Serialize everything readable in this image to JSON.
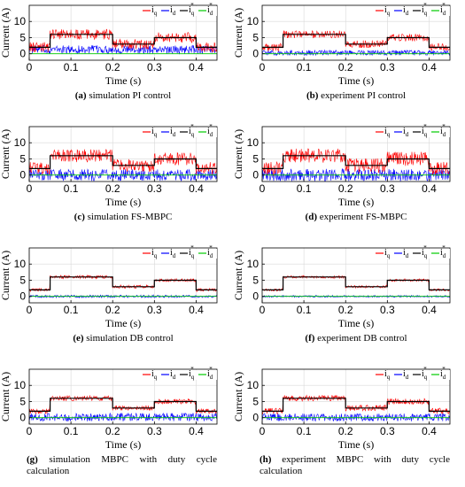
{
  "colors": {
    "iq": "#ff0000",
    "id": "#0000ff",
    "iq_ref": "#000000",
    "id_ref": "#00cc00"
  },
  "legend": [
    {
      "main": "i",
      "sub": "q",
      "sup": ""
    },
    {
      "main": "i",
      "sub": "d",
      "sup": ""
    },
    {
      "main": "i",
      "sub": "q",
      "sup": "*"
    },
    {
      "main": "i",
      "sub": "d",
      "sup": "*"
    }
  ],
  "chart_data": [
    {
      "type": "line",
      "letter": "(a)",
      "caption": "simulation PI control",
      "xlabel": "Time (s)",
      "ylabel": "Current (A)",
      "xlim": [
        0,
        0.45
      ],
      "ylim": [
        -2,
        15
      ],
      "xticks": [
        "0",
        "0.1",
        "0.2",
        "0.3",
        "0.4"
      ],
      "yticks": [
        "0",
        "5",
        "10"
      ],
      "series": [
        {
          "name": "iq*",
          "steps": [
            [
              0,
              2
            ],
            [
              0.05,
              6
            ],
            [
              0.2,
              3
            ],
            [
              0.3,
              5
            ],
            [
              0.4,
              2
            ]
          ]
        },
        {
          "name": "iq",
          "mean": "iq*",
          "noise": 1.6
        },
        {
          "name": "id*",
          "constant": 0
        },
        {
          "name": "id",
          "base": 1.3,
          "noise": 1.3
        }
      ]
    },
    {
      "type": "line",
      "letter": "(b)",
      "caption": "experiment PI control",
      "xlabel": "Time (s)",
      "ylabel": "Current (A)",
      "xlim": [
        0,
        0.45
      ],
      "ylim": [
        -2,
        15
      ],
      "xticks": [
        "0",
        "0.1",
        "0.2",
        "0.3",
        "0.4"
      ],
      "yticks": [
        "0",
        "5",
        "10"
      ],
      "series": [
        {
          "name": "iq*",
          "steps": [
            [
              0,
              2
            ],
            [
              0.05,
              6
            ],
            [
              0.2,
              3
            ],
            [
              0.3,
              5
            ],
            [
              0.4,
              2
            ]
          ]
        },
        {
          "name": "iq",
          "mean": "iq*",
          "noise": 1.2
        },
        {
          "name": "id*",
          "constant": 0
        },
        {
          "name": "id",
          "base": 0.3,
          "noise": 0.8
        }
      ]
    },
    {
      "type": "line",
      "letter": "(c)",
      "caption": "simulation FS-MBPC",
      "xlabel": "Time (s)",
      "ylabel": "Current (A)",
      "xlim": [
        0,
        0.45
      ],
      "ylim": [
        -2,
        15
      ],
      "xticks": [
        "0",
        "0.1",
        "0.2",
        "0.3",
        "0.4"
      ],
      "yticks": [
        "0",
        "5",
        "10"
      ],
      "series": [
        {
          "name": "iq*",
          "steps": [
            [
              0,
              2
            ],
            [
              0.05,
              6
            ],
            [
              0.2,
              3
            ],
            [
              0.3,
              5
            ],
            [
              0.4,
              2
            ]
          ]
        },
        {
          "name": "iq",
          "mean": "iq*",
          "noise": 2.0
        },
        {
          "name": "id*",
          "constant": 0
        },
        {
          "name": "id",
          "base": 0,
          "noise": 1.8
        }
      ]
    },
    {
      "type": "line",
      "letter": "(d)",
      "caption": "experiment FS-MBPC",
      "xlabel": "Time (s)",
      "ylabel": "Current (A)",
      "xlim": [
        0,
        0.45
      ],
      "ylim": [
        -2,
        15
      ],
      "xticks": [
        "0",
        "0.1",
        "0.2",
        "0.3",
        "0.4"
      ],
      "yticks": [
        "0",
        "5",
        "10"
      ],
      "series": [
        {
          "name": "iq*",
          "steps": [
            [
              0,
              2
            ],
            [
              0.05,
              6
            ],
            [
              0.2,
              3
            ],
            [
              0.3,
              5
            ],
            [
              0.4,
              2
            ]
          ]
        },
        {
          "name": "iq",
          "mean": "iq*",
          "noise": 2.2
        },
        {
          "name": "id*",
          "constant": 0
        },
        {
          "name": "id",
          "base": 0,
          "noise": 1.9
        }
      ]
    },
    {
      "type": "line",
      "letter": "(e)",
      "caption": "simulation DB control",
      "xlabel": "Time (s)",
      "ylabel": "Current (A)",
      "xlim": [
        0,
        0.45
      ],
      "ylim": [
        -2,
        15
      ],
      "xticks": [
        "0",
        "0.1",
        "0.2",
        "0.3",
        "0.4"
      ],
      "yticks": [
        "0",
        "5",
        "10"
      ],
      "series": [
        {
          "name": "iq*",
          "steps": [
            [
              0,
              2
            ],
            [
              0.05,
              6
            ],
            [
              0.2,
              3
            ],
            [
              0.3,
              5
            ],
            [
              0.4,
              2
            ]
          ]
        },
        {
          "name": "iq",
          "mean": "iq*",
          "noise": 0.5
        },
        {
          "name": "id*",
          "constant": 0
        },
        {
          "name": "id",
          "base": 0,
          "noise": 0.4
        }
      ]
    },
    {
      "type": "line",
      "letter": "(f)",
      "caption": "experiment DB control",
      "xlabel": "Time (s)",
      "ylabel": "Current (A)",
      "xlim": [
        0,
        0.45
      ],
      "ylim": [
        -2,
        15
      ],
      "xticks": [
        "0",
        "0.1",
        "0.2",
        "0.3",
        "0.4"
      ],
      "yticks": [
        "0",
        "5",
        "10"
      ],
      "series": [
        {
          "name": "iq*",
          "steps": [
            [
              0,
              2
            ],
            [
              0.05,
              6
            ],
            [
              0.2,
              3
            ],
            [
              0.3,
              5
            ],
            [
              0.4,
              2
            ]
          ]
        },
        {
          "name": "iq",
          "mean": "iq*",
          "noise": 0.4
        },
        {
          "name": "id*",
          "constant": 0
        },
        {
          "name": "id",
          "base": 0,
          "noise": 0.3
        }
      ]
    },
    {
      "type": "line",
      "letter": "(g)",
      "caption": "simulation MBPC with duty cycle calculation",
      "xlabel": "Time (s)",
      "ylabel": "Current (A)",
      "xlim": [
        0,
        0.45
      ],
      "ylim": [
        -2,
        15
      ],
      "xticks": [
        "0",
        "0.1",
        "0.2",
        "0.3",
        "0.4"
      ],
      "yticks": [
        "0",
        "5",
        "10"
      ],
      "series": [
        {
          "name": "iq*",
          "steps": [
            [
              0,
              2
            ],
            [
              0.05,
              6
            ],
            [
              0.2,
              3
            ],
            [
              0.3,
              5
            ],
            [
              0.4,
              2
            ]
          ]
        },
        {
          "name": "iq",
          "mean": "iq*",
          "noise": 0.8
        },
        {
          "name": "id*",
          "constant": 0
        },
        {
          "name": "id",
          "base": 0.2,
          "noise": 1.3
        }
      ]
    },
    {
      "type": "line",
      "letter": "(h)",
      "caption": "experiment MBPC with duty cycle calculation",
      "xlabel": "Time (s)",
      "ylabel": "Current (A)",
      "xlim": [
        0,
        0.45
      ],
      "ylim": [
        -2,
        15
      ],
      "xticks": [
        "0",
        "0.1",
        "0.2",
        "0.3",
        "0.4"
      ],
      "yticks": [
        "0",
        "5",
        "10"
      ],
      "series": [
        {
          "name": "iq*",
          "steps": [
            [
              0,
              2
            ],
            [
              0.05,
              6
            ],
            [
              0.2,
              3
            ],
            [
              0.3,
              5
            ],
            [
              0.4,
              2
            ]
          ]
        },
        {
          "name": "iq",
          "mean": "iq*",
          "noise": 0.9
        },
        {
          "name": "id*",
          "constant": 0
        },
        {
          "name": "id",
          "base": 0.1,
          "noise": 1.2
        }
      ]
    }
  ]
}
